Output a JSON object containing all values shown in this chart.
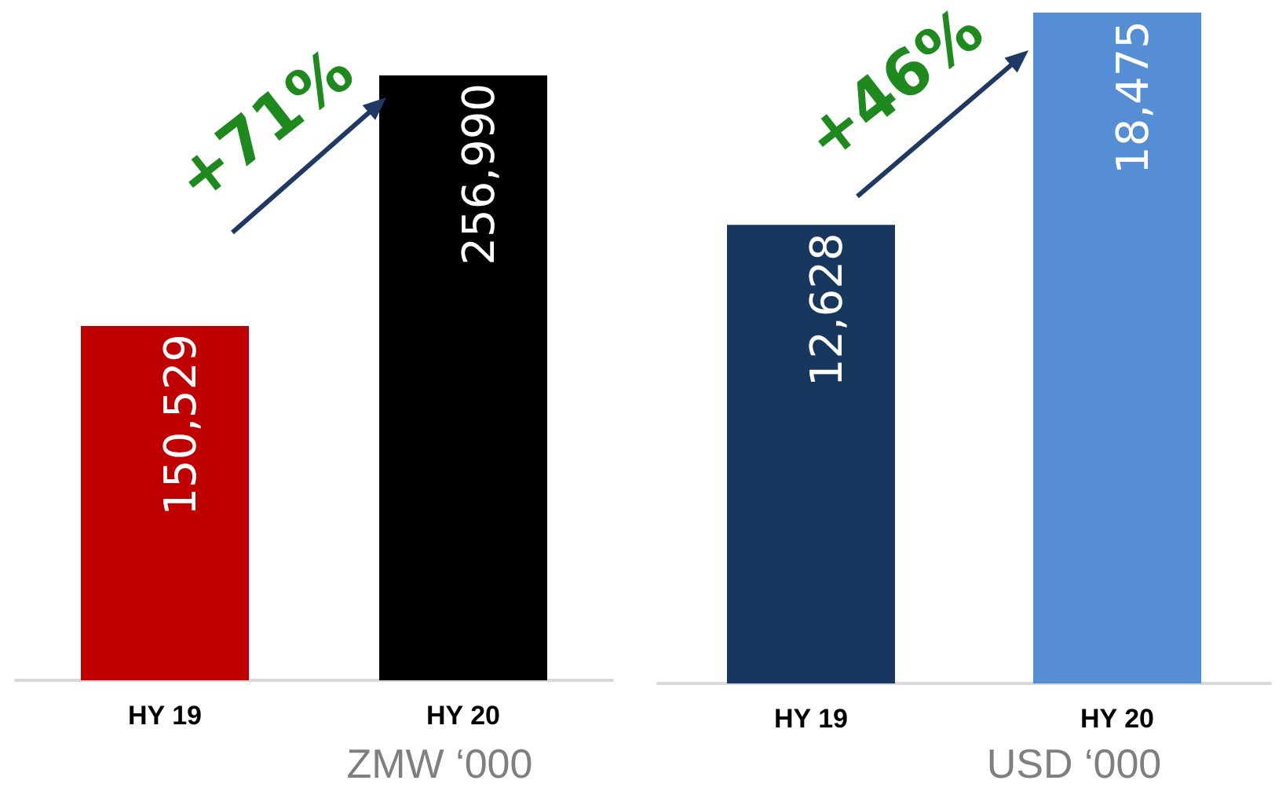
{
  "chart_data": [
    {
      "type": "bar",
      "categories": [
        "HY 19",
        "HY 20"
      ],
      "values": [
        150529,
        256990
      ],
      "colors": [
        "#c00000",
        "#000000"
      ],
      "value_labels": [
        "150,529",
        "256,990"
      ],
      "xlabel": "ZMW ‘000",
      "annotations": [
        "+71%"
      ]
    },
    {
      "type": "bar",
      "categories": [
        "HY 19",
        "HY 20"
      ],
      "values": [
        12628,
        18475
      ],
      "colors": [
        "#17375e",
        "#558ed5"
      ],
      "value_labels": [
        "12,628",
        "18,475"
      ],
      "xlabel": "USD ‘000",
      "annotations": [
        "+46%"
      ]
    }
  ]
}
